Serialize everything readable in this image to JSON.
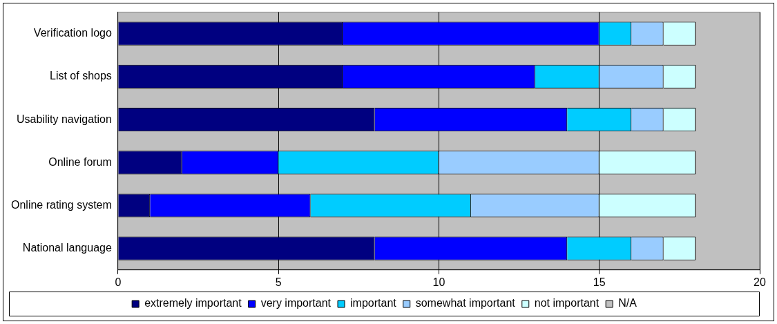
{
  "chart_data": {
    "type": "bar",
    "orientation": "horizontal",
    "stacked": true,
    "categories": [
      "Verification logo",
      "List of shops",
      "Usability navigation",
      "Online forum",
      "Online rating system",
      "National language"
    ],
    "series": [
      {
        "name": "extremely important",
        "color": "#000080",
        "values": [
          7,
          7,
          8,
          2,
          1,
          8
        ]
      },
      {
        "name": "very important",
        "color": "#0000ff",
        "values": [
          8,
          6,
          6,
          3,
          5,
          6
        ]
      },
      {
        "name": "important",
        "color": "#00ccff",
        "values": [
          1,
          2,
          2,
          5,
          5,
          2
        ]
      },
      {
        "name": "somewhat important",
        "color": "#99ccff",
        "values": [
          1,
          2,
          1,
          5,
          4,
          1
        ]
      },
      {
        "name": "not important",
        "color": "#ccffff",
        "values": [
          1,
          1,
          1,
          3,
          3,
          1
        ]
      },
      {
        "name": "N/A",
        "color": "#c0c0c0",
        "values": [
          0,
          0,
          0,
          0,
          0,
          0
        ]
      }
    ],
    "xlim": [
      0,
      20
    ],
    "xticks": [
      0,
      5,
      10,
      15,
      20
    ],
    "grid": "x",
    "legend": "bottom"
  }
}
